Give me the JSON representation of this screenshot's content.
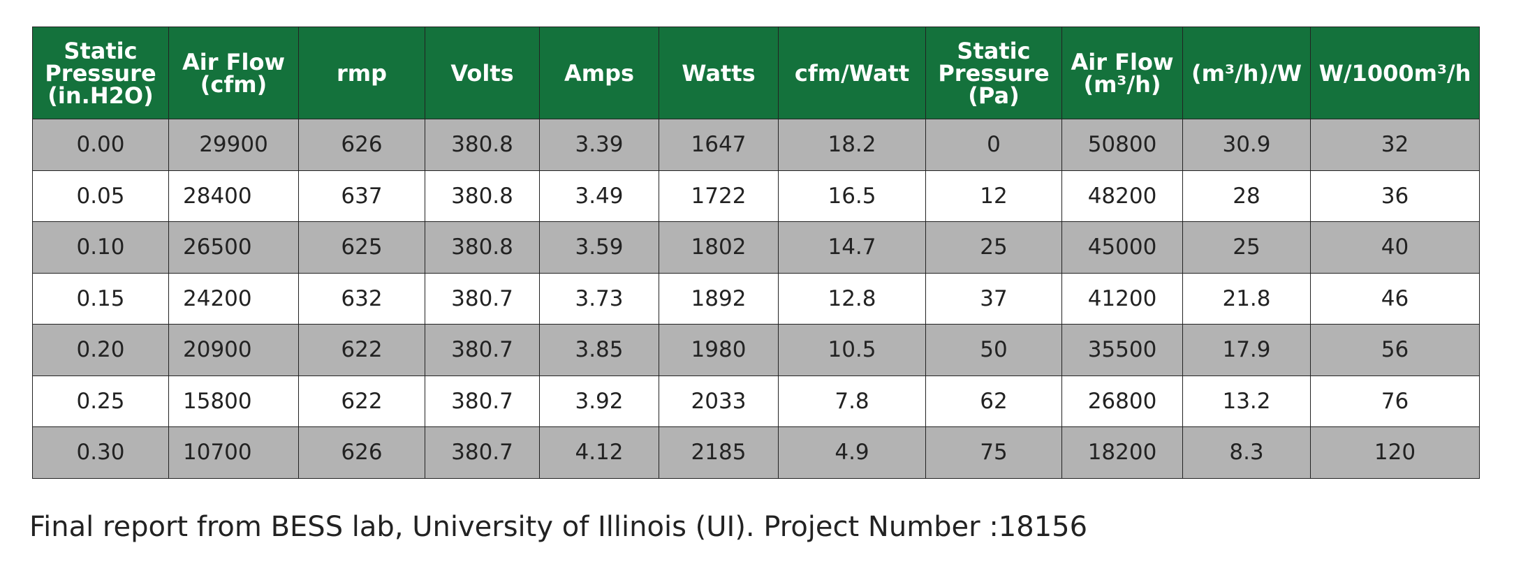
{
  "table": {
    "headers": [
      "Static\nPressure\n(in.H2O)",
      "Air Flow\n(cfm)",
      "rmp",
      "Volts",
      "Amps",
      "Watts",
      "cfm/Watt",
      "Static\nPressure\n(Pa)",
      "Air Flow\n(m³/h)",
      "(m³/h)/W",
      "W/1000m³/h"
    ],
    "rows": [
      [
        "0.00",
        "29900",
        "626",
        "380.8",
        "3.39",
        "1647",
        "18.2",
        "0",
        "50800",
        "30.9",
        "32"
      ],
      [
        "0.05",
        "28400",
        "637",
        "380.8",
        "3.49",
        "1722",
        "16.5",
        "12",
        "48200",
        "28",
        "36"
      ],
      [
        "0.10",
        "26500",
        "625",
        "380.8",
        "3.59",
        "1802",
        "14.7",
        "25",
        "45000",
        "25",
        "40"
      ],
      [
        "0.15",
        "24200",
        "632",
        "380.7",
        "3.73",
        "1892",
        "12.8",
        "37",
        "41200",
        "21.8",
        "46"
      ],
      [
        "0.20",
        "20900",
        "622",
        "380.7",
        "3.85",
        "1980",
        "10.5",
        "50",
        "35500",
        "17.9",
        "56"
      ],
      [
        "0.25",
        "15800",
        "622",
        "380.7",
        "3.92",
        "2033",
        "7.8",
        "62",
        "26800",
        "13.2",
        "76"
      ],
      [
        "0.30",
        "10700",
        "626",
        "380.7",
        "4.12",
        "2185",
        "4.9",
        "75",
        "18200",
        "8.3",
        "120"
      ]
    ]
  },
  "caption": "Final report from BESS lab, University of Illinois (UI). Project Number :18156",
  "colors": {
    "header_bg": "#14723c",
    "header_text": "#ffffff",
    "row_shaded": "#b3b3b3",
    "row_plain": "#ffffff"
  }
}
